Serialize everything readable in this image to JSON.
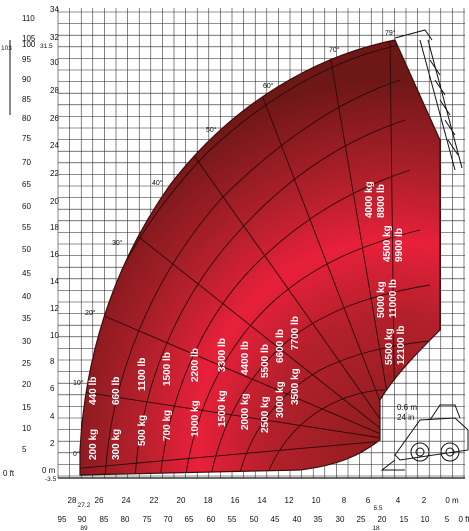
{
  "axes": {
    "ft_left": [
      "110",
      "105",
      "103",
      "100",
      "95",
      "90",
      "85",
      "80",
      "75",
      "70",
      "65",
      "60",
      "55",
      "50",
      "45",
      "40",
      "35",
      "30",
      "25",
      "20",
      "15",
      "10",
      "5",
      "0 ft"
    ],
    "m_left": [
      "34",
      "32",
      "31.5",
      "30",
      "28",
      "26",
      "24",
      "22",
      "20",
      "18",
      "16",
      "14",
      "12",
      "10",
      "8",
      "6",
      "4",
      "2",
      "0 m",
      "-3.5"
    ],
    "m_bottom": [
      "28",
      "27.2",
      "26",
      "24",
      "22",
      "20",
      "18",
      "16",
      "14",
      "12",
      "10",
      "8",
      "6",
      "5.5",
      "4",
      "2",
      "0 m"
    ],
    "ft_bottom": [
      "95",
      "90",
      "89",
      "85",
      "80",
      "75",
      "70",
      "65",
      "60",
      "55",
      "50",
      "45",
      "40",
      "35",
      "30",
      "25",
      "20",
      "18",
      "15",
      "10",
      "5",
      "0 ft"
    ],
    "aside": [
      "0.6 m",
      "24 in"
    ]
  },
  "angles": [
    "0°",
    "10°",
    "20°",
    "30°",
    "40°",
    "50°",
    "60°",
    "70°",
    "79°"
  ],
  "loads": [
    {
      "kg": "200 kg",
      "lb": "440 lb"
    },
    {
      "kg": "300 kg",
      "lb": "660 lb"
    },
    {
      "kg": "500 kg",
      "lb": "1100 lb"
    },
    {
      "kg": "700 kg",
      "lb": "1500 lb"
    },
    {
      "kg": "1000 kg",
      "lb": "2200 lb"
    },
    {
      "kg": "1500 kg",
      "lb": "3300 lb"
    },
    {
      "kg": "2000 kg",
      "lb": "4400 lb"
    },
    {
      "kg": "2500 kg",
      "lb": "5500 lb"
    },
    {
      "kg": "3000 kg",
      "lb": "6600 lb"
    },
    {
      "kg": "3500 kg",
      "lb": "7700 lb"
    },
    {
      "kg": "4000 kg",
      "lb": "8800 lb"
    },
    {
      "kg": "4500 kg",
      "lb": "9900 lb"
    },
    {
      "kg": "5000 kg",
      "lb": "11000 lb"
    },
    {
      "kg": "5500 kg",
      "lb": "12100 lb"
    }
  ],
  "colors": {
    "zone_dark": "#7a1a1a",
    "zone_mid": "#a8222a",
    "zone_bright": "#e8203a",
    "grid": "#222222"
  }
}
